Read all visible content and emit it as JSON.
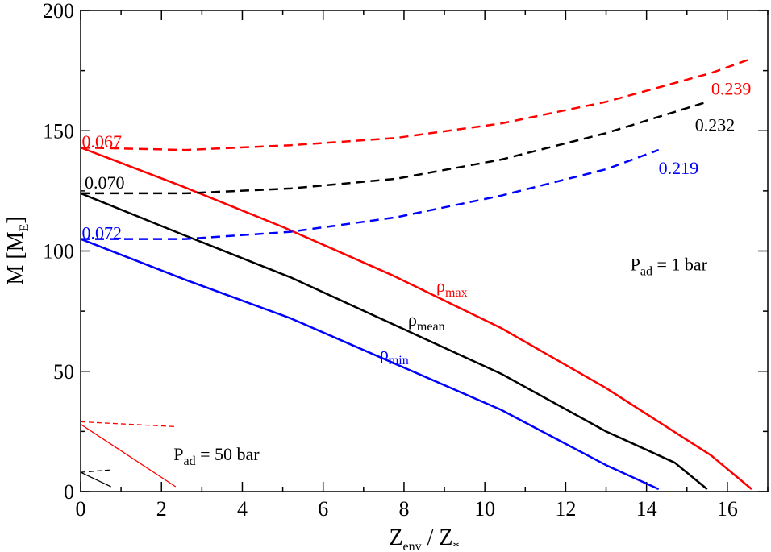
{
  "chart_data": {
    "type": "line",
    "xlabel": {
      "main": "Z",
      "sub": "env",
      "rest": " / Z",
      "sub2": "*"
    },
    "ylabel": {
      "main": "M [M",
      "sub": "E",
      "close": "]"
    },
    "xlim": [
      0,
      17
    ],
    "ylim": [
      0,
      200
    ],
    "xticks": [
      "0",
      "2",
      "4",
      "6",
      "8",
      "10",
      "12",
      "14",
      "16"
    ],
    "yticks": [
      "0",
      "50",
      "100",
      "150",
      "200"
    ],
    "grid": false,
    "colors": {
      "red": "#ff0000",
      "black": "#000000",
      "blue": "#0000ff"
    },
    "series": [
      {
        "name": "ρmax",
        "color": "#ff0000",
        "dash": false,
        "width": 2.5,
        "points": [
          [
            0,
            143
          ],
          [
            2.5,
            127
          ],
          [
            5,
            110
          ],
          [
            7.7,
            90
          ],
          [
            10.4,
            68
          ],
          [
            13,
            43
          ],
          [
            15.6,
            15
          ],
          [
            16.6,
            1
          ]
        ]
      },
      {
        "name": "ρmean",
        "color": "#000000",
        "dash": false,
        "width": 2.5,
        "points": [
          [
            0,
            124
          ],
          [
            2.5,
            107
          ],
          [
            5.2,
            89
          ],
          [
            7.8,
            69
          ],
          [
            10.4,
            49
          ],
          [
            13,
            25
          ],
          [
            14.7,
            12
          ],
          [
            15.5,
            1
          ]
        ]
      },
      {
        "name": "ρmin",
        "color": "#0000ff",
        "dash": false,
        "width": 2.5,
        "points": [
          [
            0,
            105
          ],
          [
            2.6,
            88
          ],
          [
            5.2,
            72
          ],
          [
            7.8,
            53
          ],
          [
            10.4,
            34
          ],
          [
            13,
            11
          ],
          [
            14.3,
            1
          ]
        ]
      },
      {
        "name": "",
        "color": "#ff0000",
        "dash": true,
        "width": 2.5,
        "points": [
          [
            0,
            143
          ],
          [
            2.6,
            142
          ],
          [
            5.2,
            144
          ],
          [
            7.8,
            147
          ],
          [
            10.4,
            153
          ],
          [
            13,
            162
          ],
          [
            15.6,
            174
          ],
          [
            16.6,
            180
          ]
        ]
      },
      {
        "name": "",
        "color": "#000000",
        "dash": true,
        "width": 2.5,
        "points": [
          [
            0,
            124
          ],
          [
            2.6,
            124
          ],
          [
            5.2,
            126
          ],
          [
            7.8,
            130
          ],
          [
            10.4,
            138
          ],
          [
            13,
            149
          ],
          [
            15.5,
            162
          ]
        ]
      },
      {
        "name": "",
        "color": "#0000ff",
        "dash": true,
        "width": 2.5,
        "points": [
          [
            0,
            105
          ],
          [
            2.6,
            105
          ],
          [
            5.2,
            108
          ],
          [
            7.8,
            114
          ],
          [
            10.4,
            123
          ],
          [
            13,
            134
          ],
          [
            14.3,
            142
          ]
        ]
      },
      {
        "name": "",
        "color": "#ff0000",
        "dash": false,
        "width": 1.3,
        "points": [
          [
            0,
            28
          ],
          [
            2.35,
            2
          ]
        ]
      },
      {
        "name": "",
        "color": "#ff0000",
        "dash": true,
        "width": 1.3,
        "points": [
          [
            0,
            29
          ],
          [
            2.35,
            27
          ]
        ]
      },
      {
        "name": "",
        "color": "#000000",
        "dash": false,
        "width": 1.3,
        "points": [
          [
            0,
            8
          ],
          [
            0.75,
            2
          ]
        ]
      },
      {
        "name": "",
        "color": "#000000",
        "dash": true,
        "width": 1.3,
        "points": [
          [
            0,
            8
          ],
          [
            0.75,
            9
          ]
        ]
      }
    ],
    "annotations": [
      {
        "id": "rho-max",
        "main": "ρ",
        "sub": "max",
        "x": 8.8,
        "y": 83,
        "color": "#ff0000"
      },
      {
        "id": "rho-mean",
        "main": "ρ",
        "sub": "mean",
        "x": 8.1,
        "y": 69,
        "color": "#000000"
      },
      {
        "id": "rho-min",
        "main": "ρ",
        "sub": "min",
        "x": 7.4,
        "y": 55,
        "color": "#0000ff"
      },
      {
        "id": "val-0-239",
        "main": "0.239",
        "sub": "",
        "x": 15.6,
        "y": 165,
        "color": "#ff0000"
      },
      {
        "id": "val-0-232",
        "main": "0.232",
        "sub": "",
        "x": 15.2,
        "y": 150,
        "color": "#000000"
      },
      {
        "id": "val-0-219",
        "main": "0.219",
        "sub": "",
        "x": 14.3,
        "y": 132,
        "color": "#0000ff"
      },
      {
        "id": "val-0-067",
        "main": "0.067",
        "sub": "",
        "x": 0.03,
        "y": 143,
        "color": "#ff0000"
      },
      {
        "id": "val-0-070",
        "main": "0.070",
        "sub": "",
        "x": 0.1,
        "y": 126,
        "color": "#000000"
      },
      {
        "id": "val-0-072",
        "main": "0.072",
        "sub": "",
        "x": 0.03,
        "y": 105,
        "color": "#0000ff"
      },
      {
        "id": "p-ad-1-bar",
        "main": "P",
        "sub": "ad",
        "rest": " = 1 bar",
        "x": 13.6,
        "y": 92,
        "color": "#000000"
      },
      {
        "id": "p-ad-50-bar",
        "main": "P",
        "sub": "ad",
        "rest": " = 50 bar",
        "x": 2.3,
        "y": 13,
        "color": "#000000"
      }
    ]
  }
}
